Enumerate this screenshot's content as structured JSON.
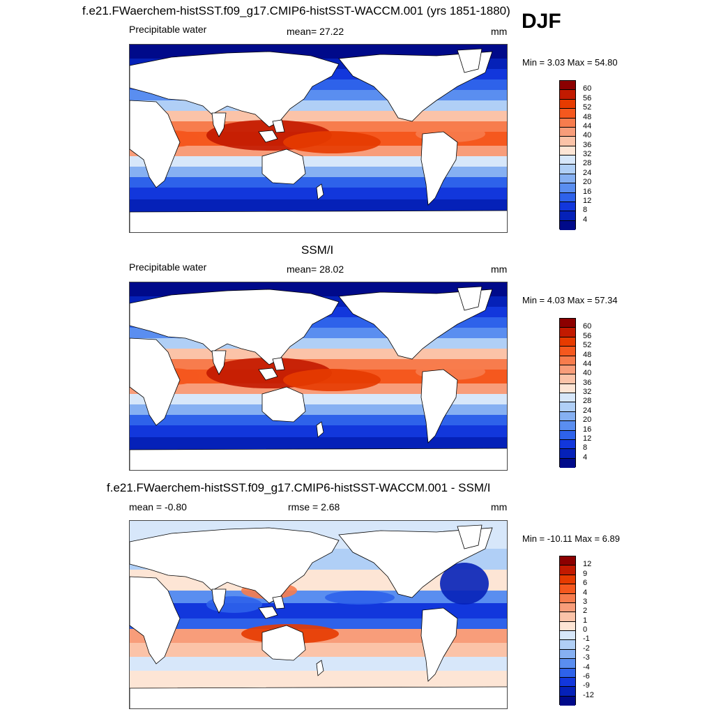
{
  "season": "DJF",
  "panels": [
    {
      "title": "f.e21.FWaerchem-histSST.f09_g17.CMIP6-histSST-WACCM.001 (yrs 1851-1880)",
      "left": "Precipitable water",
      "center": "mean=  27.22",
      "right": "mm",
      "stats": "Min =   3.03 Max =  54.80",
      "colorbar": {
        "labels": [
          "60",
          "56",
          "52",
          "48",
          "44",
          "40",
          "36",
          "32",
          "28",
          "24",
          "20",
          "16",
          "12",
          "8",
          "4"
        ],
        "colors": [
          "#8c0000",
          "#c21a00",
          "#e63b00",
          "#f5581e",
          "#f77c4d",
          "#f89d7a",
          "#fbc3a8",
          "#fde5d5",
          "#d7e7fa",
          "#b0cff6",
          "#86b0f2",
          "#5a8ef0",
          "#2e62ea",
          "#1237dc",
          "#0521b8",
          "#000a8a"
        ]
      },
      "field_type": "absolute"
    },
    {
      "title": "SSM/I",
      "left": "Precipitable water",
      "center": "mean=  28.02",
      "right": "mm",
      "stats": "Min =   4.03 Max =  57.34",
      "colorbar": {
        "labels": [
          "60",
          "56",
          "52",
          "48",
          "44",
          "40",
          "36",
          "32",
          "28",
          "24",
          "20",
          "16",
          "12",
          "8",
          "4"
        ],
        "colors": [
          "#8c0000",
          "#c21a00",
          "#e63b00",
          "#f5581e",
          "#f77c4d",
          "#f89d7a",
          "#fbc3a8",
          "#fde5d5",
          "#d7e7fa",
          "#b0cff6",
          "#86b0f2",
          "#5a8ef0",
          "#2e62ea",
          "#1237dc",
          "#0521b8",
          "#000a8a"
        ]
      },
      "field_type": "absolute"
    },
    {
      "title": "f.e21.FWaerchem-histSST.f09_g17.CMIP6-histSST-WACCM.001 - SSM/I",
      "left": "mean =  -0.80",
      "center": "rmse =   2.68",
      "right": "mm",
      "stats": "Min = -10.11 Max =   6.89",
      "colorbar": {
        "labels": [
          "12",
          "9",
          "6",
          "4",
          "3",
          "2",
          "1",
          "0",
          "-1",
          "-2",
          "-3",
          "-4",
          "-6",
          "-9",
          "-12"
        ],
        "colors": [
          "#8c0000",
          "#c21a00",
          "#e63b00",
          "#f5581e",
          "#f77c4d",
          "#f89d7a",
          "#fbc3a8",
          "#fde5d5",
          "#d7e7fa",
          "#b0cff6",
          "#86b0f2",
          "#5a8ef0",
          "#2e62ea",
          "#1237dc",
          "#0521b8",
          "#000a8a"
        ]
      },
      "field_type": "difference"
    }
  ]
}
